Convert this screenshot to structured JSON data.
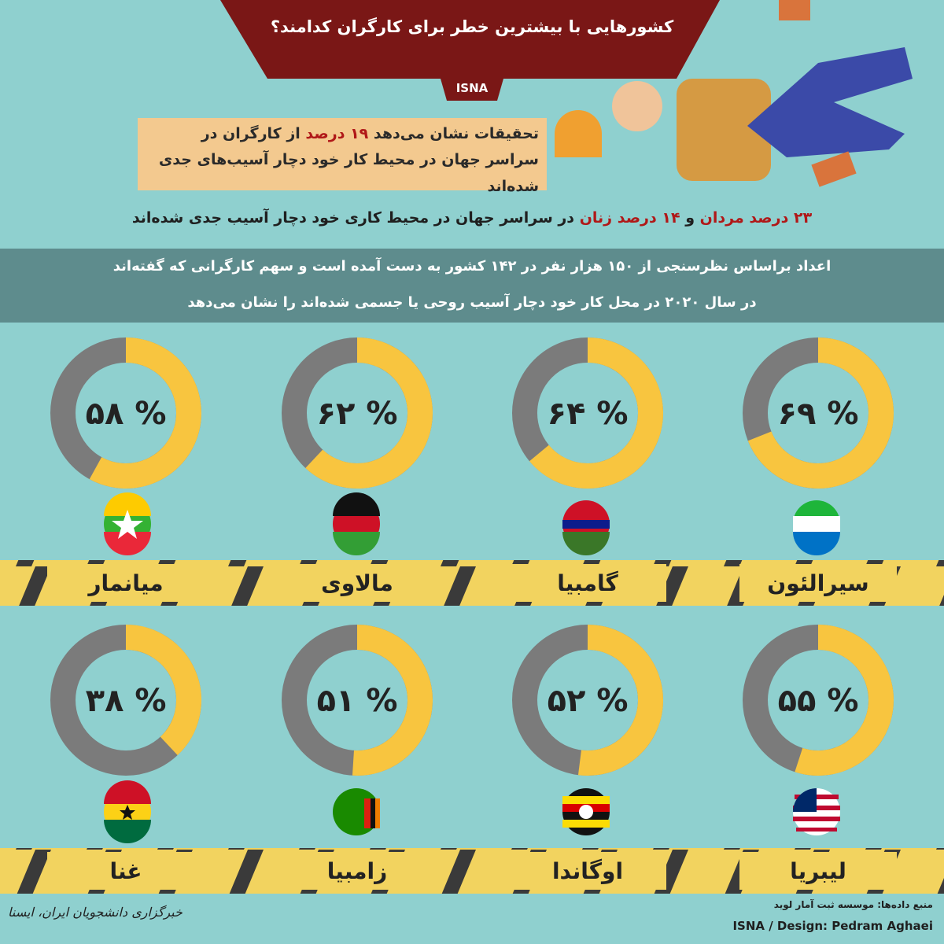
{
  "header": {
    "title": "کشورهایی با بیشترین خطر برای کارگران کدامند؟",
    "agency": "ISNA",
    "intro": [
      "تحقیقات نشان می‌دهد",
      "۱۹ درصد",
      "از کارگران در سراسر جهان در محیط کار خود دچار آسیب‌های جدی شده‌اند"
    ],
    "stat": [
      "۲۳ درصد مردان",
      "و",
      "۱۴ درصد زنان",
      "در سراسر جهان در محیط کاری خود دچار آسیب جدی شده‌اند"
    ],
    "method": [
      "اعداد براساس نظرسنجی از ۱۵۰ هزار نفر در ۱۴۲ کشور به دست آمده است و سهم کارگرانی که گفته‌اند",
      "در سال ۲۰۲۰ در محل کار خود دچار آسیب روحی یا جسمی شده‌اند را نشان می‌دهد"
    ]
  },
  "chart_data": [
    {
      "type": "donut",
      "title": "سیرالئون",
      "values": [
        69
      ],
      "value_labels": [
        "% ۶۹"
      ],
      "color": "#f8c53f",
      "rest_color": "#7b7b7b"
    },
    {
      "type": "donut",
      "title": "گامبیا",
      "values": [
        64
      ],
      "value_labels": [
        "% ۶۴"
      ],
      "color": "#f8c53f",
      "rest_color": "#7b7b7b"
    },
    {
      "type": "donut",
      "title": "مالاوی",
      "values": [
        62
      ],
      "value_labels": [
        "% ۶۲"
      ],
      "color": "#f8c53f",
      "rest_color": "#7b7b7b"
    },
    {
      "type": "donut",
      "title": "میانمار",
      "values": [
        58
      ],
      "value_labels": [
        "% ۵۸"
      ],
      "color": "#f8c53f",
      "rest_color": "#7b7b7b"
    },
    {
      "type": "donut",
      "title": "لیبریا",
      "values": [
        55
      ],
      "value_labels": [
        "% ۵۵"
      ],
      "color": "#f8c53f",
      "rest_color": "#7b7b7b"
    },
    {
      "type": "donut",
      "title": "اوگاندا",
      "values": [
        52
      ],
      "value_labels": [
        "% ۵۲"
      ],
      "color": "#f8c53f",
      "rest_color": "#7b7b7b"
    },
    {
      "type": "donut",
      "title": "زامبیا",
      "values": [
        51
      ],
      "value_labels": [
        "% ۵۱"
      ],
      "color": "#f8c53f",
      "rest_color": "#7b7b7b"
    },
    {
      "type": "donut",
      "title": "غنا",
      "values": [
        38
      ],
      "value_labels": [
        "% ۳۸"
      ],
      "color": "#f8c53f",
      "rest_color": "#7b7b7b"
    }
  ],
  "footer": {
    "source": "منبع داده‌ها: موسسه ثبت آمار لوید",
    "credit": "ISNA / Design: Pedram Aghaei",
    "logo": "خبرگزاری دانشجویان ایران، ایسنا"
  }
}
